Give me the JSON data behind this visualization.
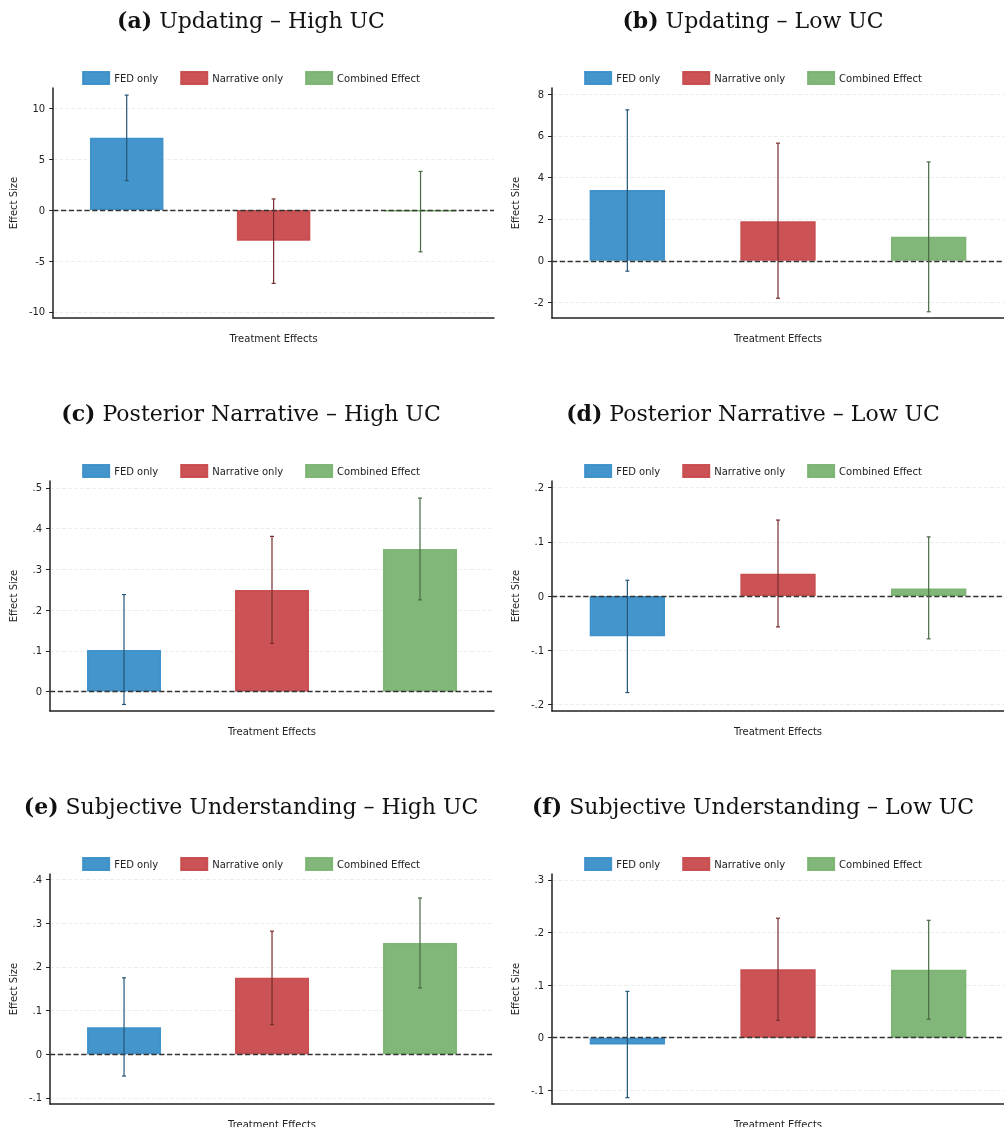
{
  "chart_data": [
    {
      "type": "bar",
      "title": "(a) Updating – High UC",
      "xlabel": "Treatment Effects",
      "ylabel": "Effect Size",
      "categories": [
        null,
        null,
        null
      ],
      "tick_labels": "y",
      "legend": "top",
      "grid": "y",
      "ylim": [
        -10.6,
        12
      ],
      "yticks": [
        -10,
        -5,
        0,
        5,
        10
      ],
      "ref_lines": [
        {
          "axis": "y",
          "value": 0,
          "color": "#333333",
          "line_style": "dashed"
        }
      ],
      "series": [
        {
          "name": "FED only",
          "color": "#3a8fc9",
          "values": [
            7.1,
            null,
            null
          ],
          "errors": [
            [
              2.9,
              11.3
            ],
            null,
            null
          ]
        },
        {
          "name": "Narrative only",
          "color": "#c84a4c",
          "values": [
            null,
            -3.0,
            null
          ],
          "errors": [
            null,
            [
              -7.2,
              1.1
            ],
            null
          ]
        },
        {
          "name": "Combined Effect",
          "color": "#7ab371",
          "values": [
            null,
            null,
            -0.1
          ],
          "errors": [
            null,
            null,
            [
              -4.1,
              3.8
            ]
          ]
        }
      ]
    },
    {
      "type": "bar",
      "title": "(b) Updating – Low UC",
      "xlabel": "Treatment Effects",
      "ylabel": "Effect Size",
      "categories": [
        null,
        null,
        null
      ],
      "tick_labels": "y",
      "legend": "top",
      "grid": "y",
      "ylim": [
        -2.75,
        8.3
      ],
      "yticks": [
        -2,
        0,
        2,
        4,
        6,
        8
      ],
      "ref_lines": [
        {
          "axis": "y",
          "value": 0,
          "color": "#333333",
          "line_style": "dashed"
        }
      ],
      "series": [
        {
          "name": "FED only",
          "color": "#3a8fc9",
          "values": [
            3.4,
            null,
            null
          ],
          "errors": [
            [
              -0.5,
              7.25
            ],
            null,
            null
          ]
        },
        {
          "name": "Narrative only",
          "color": "#c84a4c",
          "values": [
            null,
            1.9,
            null
          ],
          "errors": [
            null,
            [
              -1.8,
              5.65
            ],
            null
          ]
        },
        {
          "name": "Combined Effect",
          "color": "#7ab371",
          "values": [
            null,
            null,
            1.15
          ],
          "errors": [
            null,
            null,
            [
              -2.45,
              4.75
            ]
          ]
        }
      ]
    },
    {
      "type": "bar",
      "title": "(c) Posterior Narrative – High UC",
      "xlabel": "Treatment Effects",
      "ylabel": "Effect Size",
      "categories": [
        null,
        null,
        null
      ],
      "tick_labels": "y",
      "legend": "top",
      "grid": "y",
      "ylim": [
        -0.048,
        0.517
      ],
      "yticks": [
        0,
        {
          "value": 0.1,
          "label": ".1"
        },
        {
          "value": 0.2,
          "label": ".2"
        },
        {
          "value": 0.3,
          "label": ".3"
        },
        {
          "value": 0.4,
          "label": ".4"
        },
        {
          "value": 0.5,
          "label": ".5"
        }
      ],
      "ref_lines": [
        {
          "axis": "y",
          "value": 0,
          "color": "#333333",
          "line_style": "dashed"
        }
      ],
      "series": [
        {
          "name": "FED only",
          "color": "#3a8fc9",
          "values": [
            0.102,
            null,
            null
          ],
          "errors": [
            [
              -0.032,
              0.238
            ],
            null,
            null
          ]
        },
        {
          "name": "Narrative only",
          "color": "#c84a4c",
          "values": [
            null,
            0.249,
            null
          ],
          "errors": [
            null,
            [
              0.118,
              0.381
            ],
            null
          ]
        },
        {
          "name": "Combined Effect",
          "color": "#7ab371",
          "values": [
            null,
            null,
            0.35
          ],
          "errors": [
            null,
            null,
            [
              0.225,
              0.475
            ]
          ]
        }
      ]
    },
    {
      "type": "bar",
      "title": "(d) Posterior Narrative – Low UC",
      "xlabel": "Treatment Effects",
      "ylabel": "Effect Size",
      "categories": [
        null,
        null,
        null
      ],
      "tick_labels": "y",
      "legend": "top",
      "grid": "y",
      "ylim": [
        -0.212,
        0.212
      ],
      "yticks": [
        {
          "value": -0.2,
          "label": "-.2"
        },
        {
          "value": -0.1,
          "label": "-.1"
        },
        0,
        {
          "value": 0.1,
          "label": ".1"
        },
        {
          "value": 0.2,
          "label": ".2"
        }
      ],
      "ref_lines": [
        {
          "axis": "y",
          "value": 0,
          "color": "#333333",
          "line_style": "dashed"
        }
      ],
      "series": [
        {
          "name": "FED only",
          "color": "#3a8fc9",
          "values": [
            -0.074,
            null,
            null
          ],
          "errors": [
            [
              -0.178,
              0.029
            ],
            null,
            null
          ]
        },
        {
          "name": "Narrative only",
          "color": "#c84a4c",
          "values": [
            null,
            0.041,
            null
          ],
          "errors": [
            null,
            [
              -0.057,
              0.14
            ],
            null
          ]
        },
        {
          "name": "Combined Effect",
          "color": "#7ab371",
          "values": [
            null,
            null,
            0.014
          ],
          "errors": [
            null,
            null,
            [
              -0.079,
              0.109
            ]
          ]
        }
      ]
    },
    {
      "type": "bar",
      "title": "(e) Subjective Understanding – High UC",
      "xlabel": "Treatment Effects",
      "ylabel": "Effect Size",
      "categories": [
        null,
        null,
        null
      ],
      "tick_labels": "y",
      "legend": "top",
      "grid": "y",
      "ylim": [
        -0.114,
        0.413
      ],
      "yticks": [
        {
          "value": -0.1,
          "label": "-.1"
        },
        0,
        {
          "value": 0.1,
          "label": ".1"
        },
        {
          "value": 0.2,
          "label": ".2"
        },
        {
          "value": 0.3,
          "label": ".3"
        },
        {
          "value": 0.4,
          "label": ".4"
        }
      ],
      "ref_lines": [
        {
          "axis": "y",
          "value": 0,
          "color": "#333333",
          "line_style": "dashed"
        }
      ],
      "series": [
        {
          "name": "FED only",
          "color": "#3a8fc9",
          "values": [
            0.062,
            null,
            null
          ],
          "errors": [
            [
              -0.05,
              0.175
            ],
            null,
            null
          ]
        },
        {
          "name": "Narrative only",
          "color": "#c84a4c",
          "values": [
            null,
            0.175,
            null
          ],
          "errors": [
            null,
            [
              0.068,
              0.282
            ],
            null
          ]
        },
        {
          "name": "Combined Effect",
          "color": "#7ab371",
          "values": [
            null,
            null,
            0.255
          ],
          "errors": [
            null,
            null,
            [
              0.152,
              0.358
            ]
          ]
        }
      ]
    },
    {
      "type": "bar",
      "title": "(f) Subjective Understanding – Low UC",
      "xlabel": "Treatment Effects",
      "ylabel": "Effect Size",
      "categories": [
        null,
        null,
        null
      ],
      "tick_labels": "y",
      "legend": "top",
      "grid": "y",
      "ylim": [
        -0.126,
        0.311
      ],
      "yticks": [
        {
          "value": -0.1,
          "label": "-.1"
        },
        0,
        {
          "value": 0.1,
          "label": ".1"
        },
        {
          "value": 0.2,
          "label": ".2"
        },
        {
          "value": 0.3,
          "label": ".3"
        }
      ],
      "ref_lines": [
        {
          "axis": "y",
          "value": 0,
          "color": "#333333",
          "line_style": "dashed"
        }
      ],
      "series": [
        {
          "name": "FED only",
          "color": "#3a8fc9",
          "values": [
            -0.013,
            null,
            null
          ],
          "errors": [
            [
              -0.114,
              0.088
            ],
            null,
            null
          ]
        },
        {
          "name": "Narrative only",
          "color": "#c84a4c",
          "values": [
            null,
            0.13,
            null
          ],
          "errors": [
            null,
            [
              0.033,
              0.227
            ],
            null
          ]
        },
        {
          "name": "Combined Effect",
          "color": "#7ab371",
          "values": [
            null,
            null,
            0.129
          ],
          "errors": [
            null,
            null,
            [
              0.035,
              0.223
            ]
          ]
        }
      ]
    }
  ]
}
